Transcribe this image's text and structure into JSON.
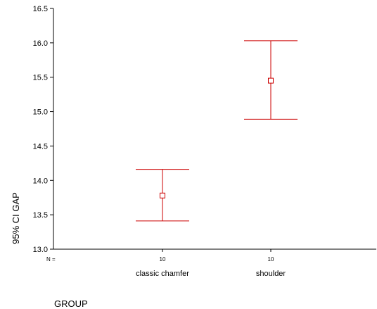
{
  "chart_data": {
    "type": "errorbar",
    "title": "",
    "ylabel": "95% CI GAP",
    "xlabel": "GROUP",
    "ylim": [
      13.0,
      16.5
    ],
    "yticks": [
      "13.0",
      "13.5",
      "14.0",
      "14.5",
      "15.0",
      "15.5",
      "16.0",
      "16.5"
    ],
    "n_label": "N =",
    "categories": [
      "classic chamfer",
      "shoulder"
    ],
    "n": [
      "10",
      "10"
    ],
    "mean": [
      13.78,
      15.45
    ],
    "lower": [
      13.41,
      14.89
    ],
    "upper": [
      14.16,
      16.03
    ],
    "color": "#cc0000",
    "grid": false
  }
}
